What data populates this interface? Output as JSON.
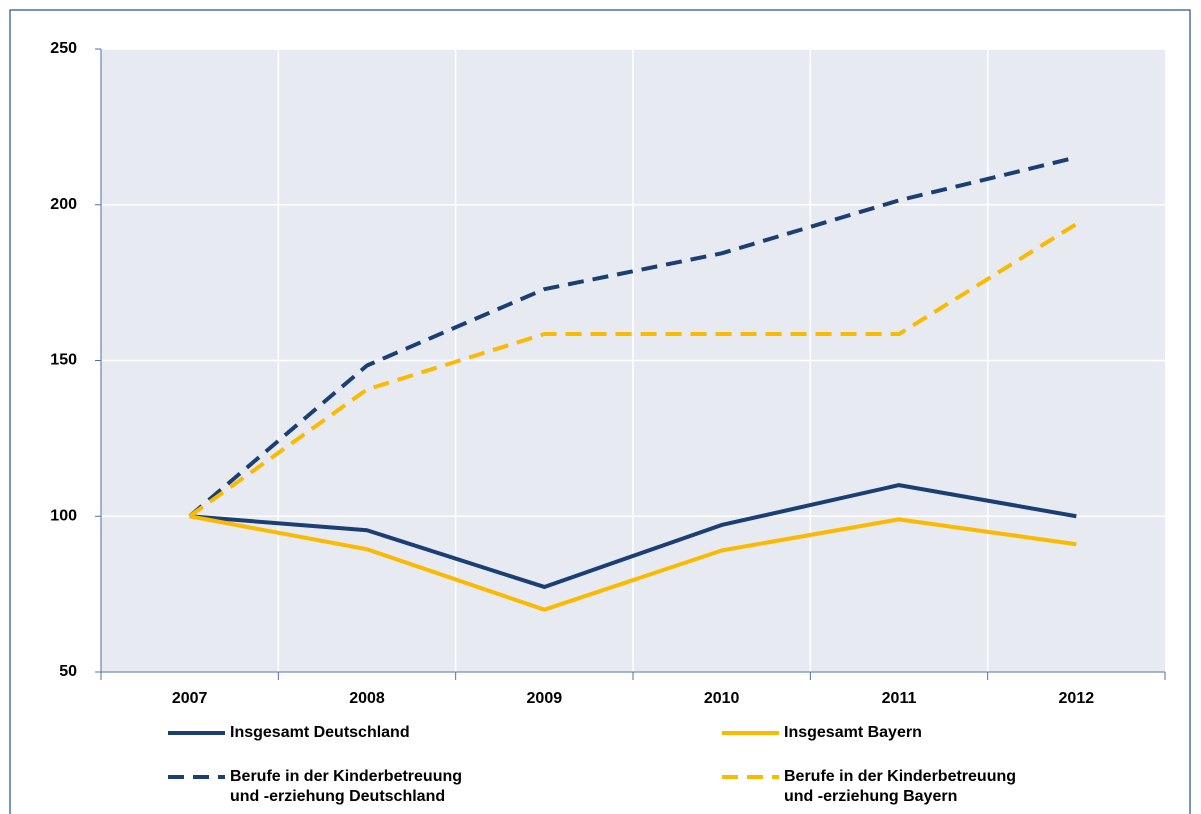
{
  "chart_data": {
    "type": "line",
    "categories": [
      "2007",
      "2008",
      "2009",
      "2010",
      "2011",
      "2012"
    ],
    "series": [
      {
        "name": "Insgesamt Deutschland",
        "color": "#1b3f74",
        "line_style": "solid",
        "values": [
          100,
          95.5,
          77.3,
          97.2,
          110,
          100
        ]
      },
      {
        "name": "Insgesamt Bayern",
        "color": "#fbb900",
        "line_style": "solid",
        "values": [
          100,
          89.4,
          70,
          89,
          99,
          91
        ]
      },
      {
        "name": "Berufe in der Kinderbetreuung\nund -erziehung Deutschland",
        "color": "#1b3f74",
        "line_style": "dashed",
        "values": [
          100,
          148.4,
          172.9,
          184.4,
          201.4,
          215.2
        ]
      },
      {
        "name": "Berufe in der Kinderbetreuung\nund -erziehung Bayern",
        "color": "#fbb900",
        "line_style": "dashed",
        "values": [
          100,
          140.7,
          158.5,
          158.5,
          158.5,
          193.8
        ]
      }
    ],
    "ylim": [
      50,
      250
    ],
    "yticks": [
      50,
      100,
      150,
      200,
      250
    ],
    "grid": true
  }
}
